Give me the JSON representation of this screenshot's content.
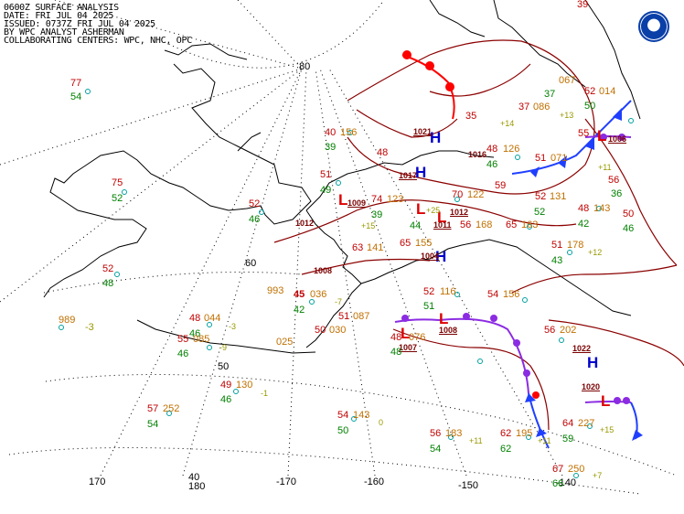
{
  "header": {
    "line1": "0600Z SURFACE ANALYSIS",
    "line2": "DATE: FRI JUL 04 2025",
    "line3": "ISSUED: 0737Z FRI JUL 04 2025",
    "line4": "BY WPC ANALYST ASHERMAN",
    "line5": "COLLABORATING CENTERS: WPC, NHC, OPC"
  },
  "logo": "noaa-logo",
  "latitude_labels": {
    "lat80": "80",
    "lat60": "60",
    "lat50": "50",
    "lat40": "40"
  },
  "longitude_labels": {
    "lon170": "170",
    "lon180": "180",
    "lon_m170": "-170",
    "lon_m160": "-160",
    "lon_m150": "-150",
    "lon_m140": "-140"
  },
  "pressure_centers": [
    {
      "kind": "H",
      "value": "1021"
    },
    {
      "kind": "H",
      "value": "1017"
    },
    {
      "kind": "L",
      "value": "1009"
    },
    {
      "kind": "L",
      "value": "1012"
    },
    {
      "kind": "L",
      "value": "1011"
    },
    {
      "kind": "H",
      "value": "1004"
    },
    {
      "kind": "L",
      "value": "1008"
    },
    {
      "kind": "L",
      "value": "1007"
    },
    {
      "kind": "H",
      "value": "1022"
    },
    {
      "kind": "L",
      "value": "1020"
    },
    {
      "kind": "L",
      "value": "1006"
    }
  ],
  "isobar_labels": {
    "i1016": "1016",
    "i1012": "1012",
    "i1008": "1008"
  },
  "station_plots": [
    {
      "temp": "77",
      "dew": "54",
      "pres": ""
    },
    {
      "temp": "40",
      "dew": "39",
      "pres": "156"
    },
    {
      "temp": "51",
      "dew": "49",
      "pres": "123"
    },
    {
      "temp": "52",
      "dew": "46",
      "pres": ""
    },
    {
      "temp": "75",
      "dew": "52",
      "pres": ""
    },
    {
      "temp": "52",
      "dew": "48",
      "pres": ""
    },
    {
      "temp": "989",
      "dew": "",
      "pres": "-3"
    },
    {
      "temp": "48",
      "dew": "46",
      "pres": "044"
    },
    {
      "temp": "55",
      "dew": "46",
      "pres": "085"
    },
    {
      "temp": "49",
      "dew": "46",
      "pres": "130"
    },
    {
      "temp": "57",
      "dew": "54",
      "pres": "252"
    },
    {
      "temp": "45",
      "dew": "42",
      "pres": "036"
    },
    {
      "temp": "993",
      "dew": "",
      "pres": ""
    },
    {
      "temp": "50",
      "dew": "",
      "pres": "030"
    },
    {
      "temp": "51",
      "dew": "",
      "pres": "087"
    },
    {
      "temp": "48",
      "dew": "48",
      "pres": "076"
    },
    {
      "temp": "54",
      "dew": "50",
      "pres": "143"
    },
    {
      "temp": "56",
      "dew": "54",
      "pres": "183"
    },
    {
      "temp": "62",
      "dew": "62",
      "pres": "195"
    },
    {
      "temp": "64",
      "dew": "59",
      "pres": "227"
    },
    {
      "temp": "67",
      "dew": "66",
      "pres": "250"
    },
    {
      "temp": "56",
      "dew": "",
      "pres": "202"
    },
    {
      "temp": "54",
      "dew": "",
      "pres": "156"
    },
    {
      "temp": "52",
      "dew": "51",
      "pres": "116"
    },
    {
      "temp": "65",
      "dew": "",
      "pres": "155"
    },
    {
      "temp": "63",
      "dew": "",
      "pres": "141"
    },
    {
      "temp": "74",
      "dew": "39",
      "pres": "123"
    },
    {
      "temp": "70",
      "dew": "",
      "pres": "122"
    },
    {
      "temp": "56",
      "dew": "",
      "pres": "168"
    },
    {
      "temp": "65",
      "dew": "52",
      "pres": "163"
    },
    {
      "temp": "51",
      "dew": "43",
      "pres": "178"
    },
    {
      "temp": "48",
      "dew": "42",
      "pres": "143"
    },
    {
      "temp": "52",
      "dew": "36",
      "pres": "131"
    },
    {
      "temp": "48",
      "dew": "46",
      "pres": "126"
    },
    {
      "temp": "59",
      "dew": "",
      "pres": ""
    },
    {
      "temp": "48",
      "dew": "44",
      "pres": "025"
    },
    {
      "temp": "35",
      "dew": "",
      "pres": ""
    },
    {
      "temp": "37",
      "dew": "37",
      "pres": "086"
    },
    {
      "temp": "52",
      "dew": "50",
      "pres": "014"
    },
    {
      "temp": "55",
      "dew": "",
      "pres": "067"
    },
    {
      "temp": "51",
      "dew": "",
      "pres": "071"
    },
    {
      "temp": "56",
      "dew": "",
      "pres": ""
    },
    {
      "temp": "50",
      "dew": "46",
      "pres": ""
    },
    {
      "temp": "39",
      "dew": "",
      "pres": ""
    }
  ],
  "tendencies": [
    "+15",
    "-3",
    "-7",
    "-9",
    "-1",
    "0",
    "+11",
    "+11",
    "+15",
    "+7",
    "+12",
    "+13",
    "+25",
    "+14",
    "+11"
  ],
  "legend_colors": {
    "cold_front": "#1f3fff",
    "warm_front": "#ff0000",
    "occluded": "#8b2be2",
    "isobar": "#8b0000"
  }
}
